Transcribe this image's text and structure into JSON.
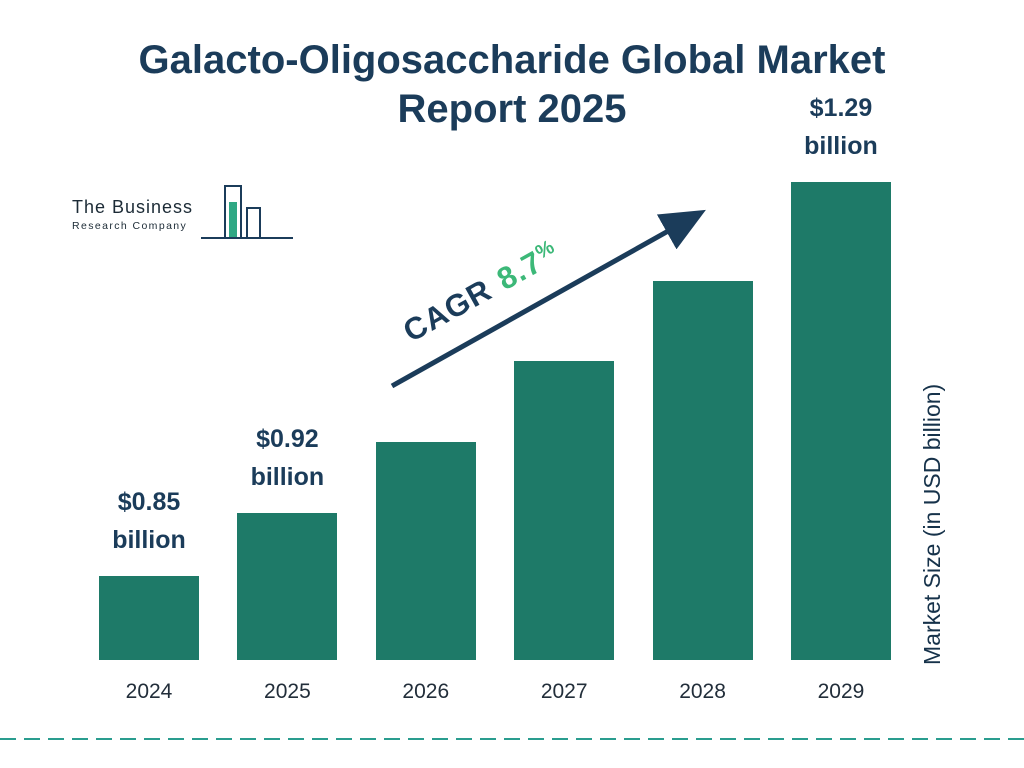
{
  "page": {
    "title": "Galacto-Oligosaccharide Global Market Report 2025"
  },
  "logo": {
    "line1": "The Business",
    "line2": "Research Company"
  },
  "cagr": {
    "label": "CAGR",
    "value": "8.7",
    "suffix": "%"
  },
  "y_axis_label": "Market Size (in USD billion)",
  "chart_data": {
    "type": "bar",
    "title": "Galacto-Oligosaccharide Global Market Report 2025",
    "categories": [
      "2024",
      "2025",
      "2026",
      "2027",
      "2028",
      "2029"
    ],
    "values": [
      0.85,
      0.92,
      1.0,
      1.09,
      1.18,
      1.29
    ],
    "bar_labels": [
      {
        "amount": "$0.85",
        "unit": "billion"
      },
      {
        "amount": "$0.92",
        "unit": "billion"
      },
      null,
      null,
      null,
      {
        "amount": "$1.29",
        "unit": "billion"
      }
    ],
    "labeled_values_only": [
      "$0.85 billion",
      "$0.92 billion",
      "$1.29 billion"
    ],
    "cagr_annotation": "CAGR 8.7%",
    "xlabel": "",
    "ylabel": "Market Size (in USD billion)",
    "grid": false,
    "legend": false,
    "bar_color": "#1e7a68",
    "baseline_style": "non-zero stylized baseline"
  },
  "colors": {
    "bar": "#1e7a68",
    "navy": "#1b3c5a",
    "green": "#3cb878",
    "dashed_line": "#2a9d8f"
  }
}
